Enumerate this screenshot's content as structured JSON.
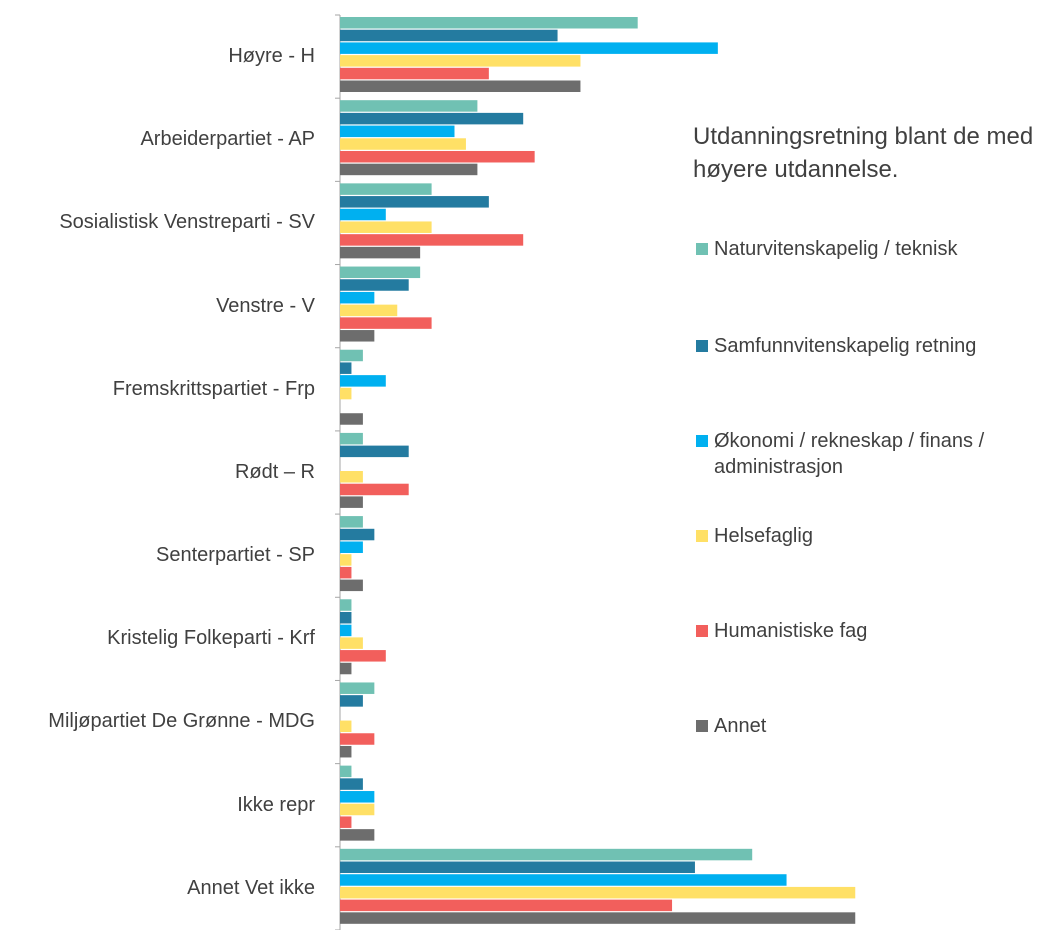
{
  "chart_data": {
    "type": "barh",
    "legend_title": "Utdanningsretning blant de med høyere utdannelse.",
    "categories": [
      "Høyre - H",
      "Arbeiderpartiet - AP",
      "Sosialistisk Venstreparti - SV",
      "Venstre - V",
      "Fremskrittspartiet - Frp",
      "Rødt – R",
      "Senterpartiet - SP",
      "Kristelig Folkeparti - Krf",
      "Miljøpartiet De Grønne - MDG",
      "Ikke repr",
      "Annet Vet ikke"
    ],
    "series": [
      {
        "name": "Naturvitenskapelig / teknisk",
        "color": "#70c1b3",
        "values": [
          26,
          12,
          8,
          7,
          2,
          2,
          2,
          1,
          3,
          1,
          36
        ]
      },
      {
        "name": "Samfunnvitenskapelig retning",
        "color": "#247ba0",
        "values": [
          19,
          16,
          13,
          6,
          1,
          6,
          3,
          1,
          2,
          2,
          31
        ]
      },
      {
        "name": "Økonomi / rekneskap / finans / administrasjon",
        "color": "#00b0f0",
        "values": [
          33,
          10,
          4,
          3,
          4,
          0,
          2,
          1,
          0,
          3,
          39
        ]
      },
      {
        "name": "Helsefaglig",
        "color": "#ffe066",
        "values": [
          21,
          11,
          8,
          5,
          1,
          2,
          1,
          2,
          1,
          3,
          45
        ]
      },
      {
        "name": "Humanistiske fag",
        "color": "#f25f5c",
        "values": [
          13,
          17,
          16,
          8,
          0,
          6,
          1,
          4,
          3,
          1,
          29
        ]
      },
      {
        "name": "Annet",
        "color": "#6d6d6d",
        "values": [
          21,
          12,
          7,
          3,
          2,
          2,
          2,
          1,
          1,
          3,
          45
        ]
      }
    ]
  }
}
